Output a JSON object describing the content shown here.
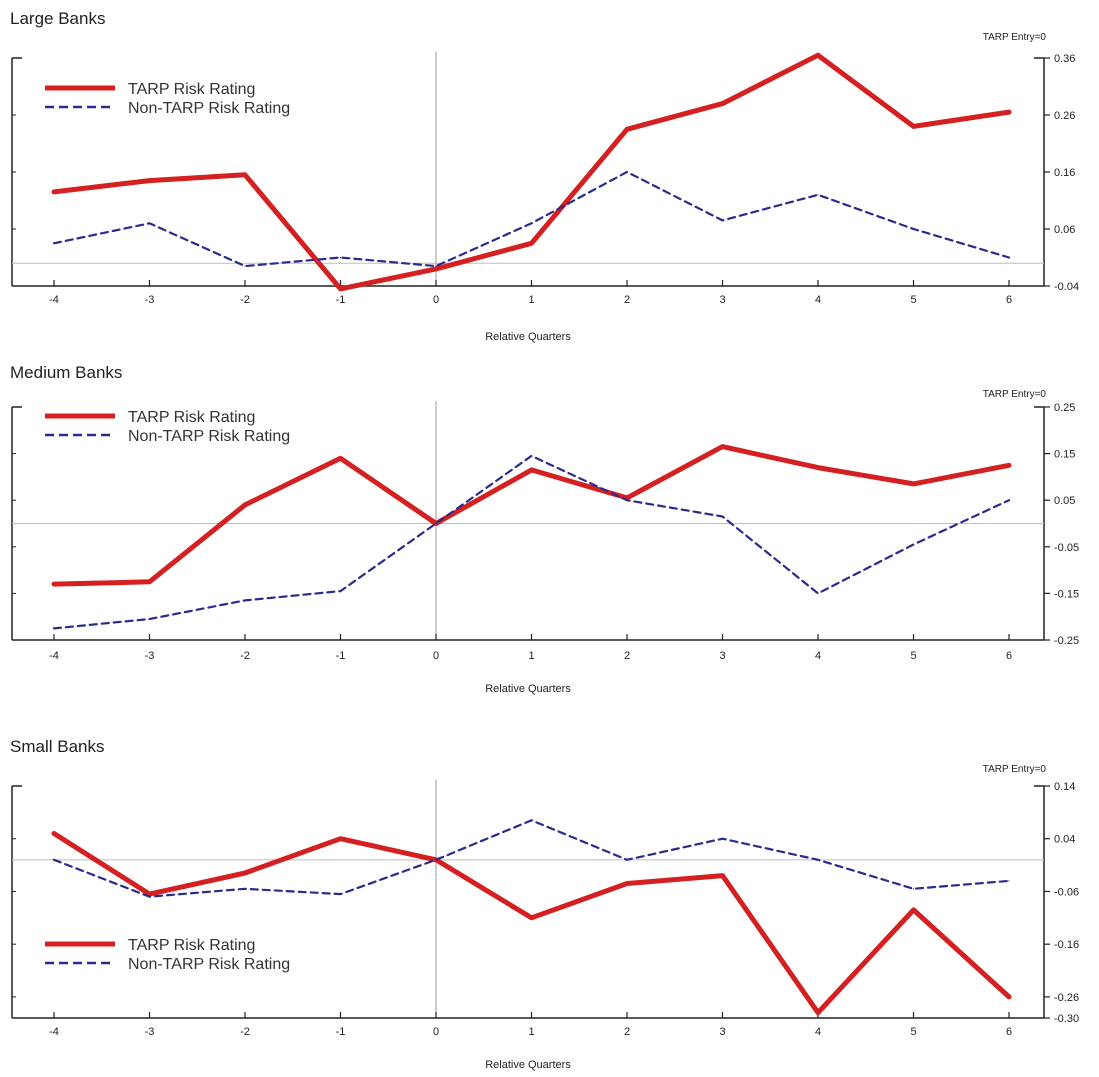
{
  "chart_data": [
    {
      "type": "line",
      "title": "Large Banks",
      "annotation": "TARP Entry=0",
      "xlabel": "Relative Quarters",
      "ylabel": "",
      "categories": [
        -4,
        -3,
        -2,
        -1,
        0,
        1,
        2,
        3,
        4,
        5,
        6
      ],
      "ylim": [
        -0.04,
        0.36
      ],
      "yticks": [
        "0.36",
        "0.26",
        "0.16",
        "0.06",
        "-0.04"
      ],
      "legend_position": "top-left",
      "series": [
        {
          "name": "TARP Risk Rating",
          "color": "#d42020",
          "style": "solid",
          "values": [
            0.125,
            0.145,
            0.155,
            -0.045,
            -0.01,
            0.035,
            0.235,
            0.28,
            0.365,
            0.24,
            0.265
          ]
        },
        {
          "name": "Non-TARP Risk Rating",
          "color": "#2b2b8c",
          "style": "dashed",
          "values": [
            0.035,
            0.07,
            -0.005,
            0.01,
            -0.005,
            0.07,
            0.16,
            0.075,
            0.12,
            0.06,
            0.01
          ]
        }
      ]
    },
    {
      "type": "line",
      "title": "Medium Banks",
      "annotation": "TARP Entry=0",
      "xlabel": "Relative Quarters",
      "ylabel": "",
      "categories": [
        -4,
        -3,
        -2,
        -1,
        0,
        1,
        2,
        3,
        4,
        5,
        6
      ],
      "ylim": [
        -0.25,
        0.25
      ],
      "yticks": [
        "0.25",
        "0.15",
        "0.05",
        "-0.05",
        "-0.15",
        "-0.25"
      ],
      "legend_position": "top-left",
      "series": [
        {
          "name": "TARP Risk Rating",
          "color": "#d42020",
          "style": "solid",
          "values": [
            -0.13,
            -0.125,
            0.04,
            0.14,
            0.0,
            0.115,
            0.055,
            0.165,
            0.12,
            0.085,
            0.125
          ]
        },
        {
          "name": "Non-TARP Risk Rating",
          "color": "#2b2b8c",
          "style": "dashed",
          "values": [
            -0.225,
            -0.205,
            -0.165,
            -0.145,
            0.0,
            0.145,
            0.05,
            0.015,
            -0.15,
            -0.045,
            0.05
          ]
        }
      ]
    },
    {
      "type": "line",
      "title": "Small Banks",
      "annotation": "TARP Entry=0",
      "xlabel": "Relative Quarters",
      "ylabel": "",
      "categories": [
        -4,
        -3,
        -2,
        -1,
        0,
        1,
        2,
        3,
        4,
        5,
        6
      ],
      "ylim": [
        -0.3,
        0.14
      ],
      "yticks": [
        "0.14",
        "0.04",
        "-0.06",
        "-0.16",
        "-0.26",
        "-0.30"
      ],
      "legend_position": "bottom-left",
      "series": [
        {
          "name": "TARP Risk Rating",
          "color": "#d42020",
          "style": "solid",
          "values": [
            0.05,
            -0.065,
            -0.025,
            0.04,
            0.0,
            -0.11,
            -0.045,
            -0.03,
            -0.29,
            -0.095,
            -0.26
          ]
        },
        {
          "name": "Non-TARP Risk Rating",
          "color": "#2b2b8c",
          "style": "dashed",
          "values": [
            0.0,
            -0.07,
            -0.055,
            -0.065,
            0.0,
            0.075,
            0.0,
            0.04,
            0.0,
            -0.055,
            -0.04
          ]
        }
      ]
    }
  ]
}
